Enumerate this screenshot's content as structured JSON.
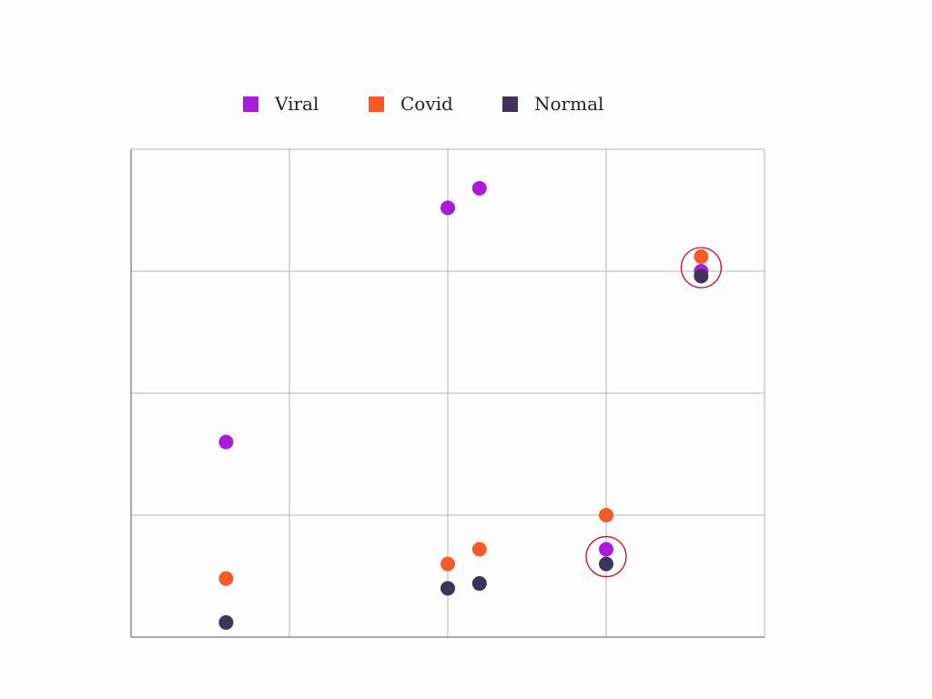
{
  "chart_data": {
    "type": "scatter",
    "title": "",
    "xlabel": "",
    "ylabel": "",
    "xlim": [
      0,
      4
    ],
    "ylim": [
      0,
      4
    ],
    "grid": true,
    "legend_position": "top-center",
    "series": [
      {
        "name": "Viral",
        "color": "#a91bd6",
        "points": [
          [
            0.6,
            1.6
          ],
          [
            2.0,
            3.52
          ],
          [
            2.2,
            3.68
          ],
          [
            3.0,
            0.72
          ],
          [
            3.6,
            3.0
          ]
        ]
      },
      {
        "name": "Covid",
        "color": "#f75a27",
        "points": [
          [
            0.6,
            0.48
          ],
          [
            2.0,
            0.6
          ],
          [
            2.2,
            0.72
          ],
          [
            3.0,
            1.0
          ],
          [
            3.6,
            3.12
          ]
        ]
      },
      {
        "name": "Normal",
        "color": "#3f3359",
        "points": [
          [
            0.6,
            0.12
          ],
          [
            2.0,
            0.4
          ],
          [
            2.2,
            0.44
          ],
          [
            3.0,
            0.6
          ],
          [
            3.6,
            2.96
          ]
        ]
      }
    ],
    "annotations": [
      {
        "type": "circle",
        "x": 3.6,
        "y": 3.03,
        "color": "#c8102e"
      },
      {
        "type": "circle",
        "x": 3.0,
        "y": 0.66,
        "color": "#c8102e"
      }
    ]
  }
}
